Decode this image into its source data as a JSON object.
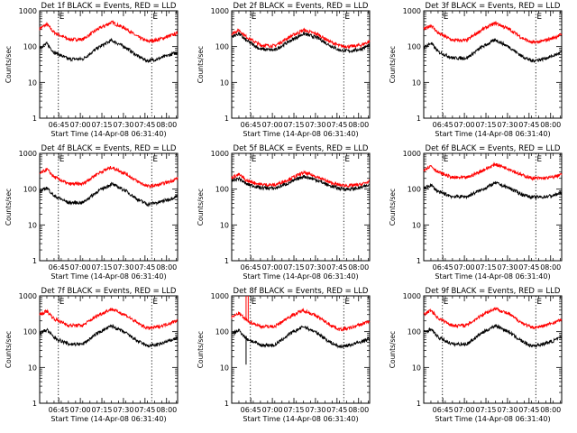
{
  "chart_data": [
    {
      "type": "line",
      "panel": "1f",
      "title": "Det 1f BLACK = Events, RED = LLD",
      "xlabel": "Start Time (14-Apr-08 06:31:40)",
      "ylabel": "Counts/sec",
      "yscale": "log",
      "ylim": [
        1,
        1000
      ],
      "xlim_minutes": [
        0,
        96
      ],
      "x_tick_labels": [
        "06:45",
        "07:00",
        "07:15",
        "07:30",
        "07:45",
        "08:00"
      ],
      "x_ticks_minutes": [
        13.3,
        28.3,
        43.3,
        58.3,
        73.3,
        88.3
      ],
      "y_tick_labels": [
        "1",
        "10",
        "100",
        "1000"
      ],
      "y_ticks": [
        1,
        10,
        100,
        1000
      ],
      "markers": [
        {
          "minutes": 13,
          "label": "E"
        },
        {
          "minutes": 78,
          "label": "E"
        }
      ],
      "series": [
        {
          "name": "Events",
          "color": "#000000",
          "x": [
            0,
            5,
            10,
            20,
            30,
            40,
            50,
            60,
            68,
            75,
            82,
            90,
            96
          ],
          "y": [
            95,
            120,
            70,
            45,
            45,
            90,
            150,
            95,
            55,
            40,
            45,
            58,
            70
          ]
        },
        {
          "name": "LLD",
          "color": "#ff0000",
          "x": [
            0,
            5,
            10,
            20,
            30,
            40,
            50,
            60,
            68,
            75,
            82,
            90,
            96
          ],
          "y": [
            320,
            420,
            250,
            160,
            160,
            300,
            480,
            320,
            190,
            140,
            155,
            195,
            240
          ]
        }
      ]
    },
    {
      "type": "line",
      "panel": "2f",
      "title": "Det 2f BLACK = Events, RED = LLD",
      "xlabel": "Start Time (14-Apr-08 06:31:40)",
      "ylabel": "Counts/sec",
      "yscale": "log",
      "ylim": [
        1,
        1000
      ],
      "xlim_minutes": [
        0,
        96
      ],
      "x_tick_labels": [
        "06:45",
        "07:00",
        "07:15",
        "07:30",
        "07:45",
        "08:00"
      ],
      "x_ticks_minutes": [
        13.3,
        28.3,
        43.3,
        58.3,
        73.3,
        88.3
      ],
      "y_tick_labels": [
        "1",
        "10",
        "100",
        "1000"
      ],
      "y_ticks": [
        1,
        10,
        100,
        1000
      ],
      "markers": [
        {
          "minutes": 13,
          "label": "E"
        },
        {
          "minutes": 78,
          "label": "E"
        }
      ],
      "series": [
        {
          "name": "Events",
          "color": "#000000",
          "x": [
            0,
            5,
            10,
            20,
            30,
            40,
            50,
            60,
            68,
            75,
            82,
            90,
            96
          ],
          "y": [
            190,
            230,
            150,
            85,
            80,
            140,
            230,
            175,
            110,
            80,
            75,
            85,
            110
          ]
        },
        {
          "name": "LLD",
          "color": "#ff0000",
          "x": [
            0,
            5,
            10,
            20,
            30,
            40,
            50,
            60,
            68,
            75,
            82,
            90,
            96
          ],
          "y": [
            230,
            290,
            190,
            110,
            105,
            185,
            290,
            220,
            140,
            105,
            100,
            110,
            140
          ]
        }
      ]
    },
    {
      "type": "line",
      "panel": "3f",
      "title": "Det 3f BLACK = Events, RED = LLD",
      "xlabel": "Start Time (14-Apr-08 06:31:40)",
      "ylabel": "Counts/sec",
      "yscale": "log",
      "ylim": [
        1,
        1000
      ],
      "xlim_minutes": [
        0,
        96
      ],
      "x_tick_labels": [
        "06:45",
        "07:00",
        "07:15",
        "07:30",
        "07:45",
        "08:00"
      ],
      "x_ticks_minutes": [
        13.3,
        28.3,
        43.3,
        58.3,
        73.3,
        88.3
      ],
      "y_tick_labels": [
        "1",
        "10",
        "100",
        "1000"
      ],
      "y_ticks": [
        1,
        10,
        100,
        1000
      ],
      "markers": [
        {
          "minutes": 13,
          "label": "E"
        },
        {
          "minutes": 78,
          "label": "E"
        }
      ],
      "series": [
        {
          "name": "Events",
          "color": "#000000",
          "x": [
            0,
            5,
            10,
            20,
            30,
            40,
            50,
            60,
            68,
            75,
            82,
            90,
            96
          ],
          "y": [
            95,
            125,
            72,
            48,
            48,
            95,
            155,
            95,
            55,
            40,
            44,
            55,
            70
          ]
        },
        {
          "name": "LLD",
          "color": "#ff0000",
          "x": [
            0,
            5,
            10,
            20,
            30,
            40,
            50,
            60,
            68,
            75,
            82,
            90,
            96
          ],
          "y": [
            300,
            400,
            240,
            150,
            150,
            290,
            460,
            300,
            180,
            130,
            140,
            175,
            220
          ]
        }
      ]
    },
    {
      "type": "line",
      "panel": "4f",
      "title": "Det 4f BLACK = Events, RED = LLD",
      "xlabel": "Start Time (14-Apr-08 06:31:40)",
      "ylabel": "Counts/sec",
      "yscale": "log",
      "ylim": [
        1,
        1000
      ],
      "xlim_minutes": [
        0,
        96
      ],
      "x_tick_labels": [
        "06:45",
        "07:00",
        "07:15",
        "07:30",
        "07:45",
        "08:00"
      ],
      "x_ticks_minutes": [
        13.3,
        28.3,
        43.3,
        58.3,
        73.3,
        88.3
      ],
      "y_tick_labels": [
        "1",
        "10",
        "100",
        "1000"
      ],
      "y_ticks": [
        1,
        10,
        100,
        1000
      ],
      "markers": [
        {
          "minutes": 13,
          "label": "E"
        },
        {
          "minutes": 78,
          "label": "E"
        }
      ],
      "series": [
        {
          "name": "Events",
          "color": "#000000",
          "x": [
            0,
            5,
            10,
            20,
            30,
            40,
            50,
            60,
            68,
            75,
            82,
            90,
            96
          ],
          "y": [
            85,
            110,
            65,
            42,
            42,
            85,
            140,
            90,
            52,
            38,
            42,
            52,
            65
          ]
        },
        {
          "name": "LLD",
          "color": "#ff0000",
          "x": [
            0,
            5,
            10,
            20,
            30,
            40,
            50,
            60,
            68,
            75,
            82,
            90,
            96
          ],
          "y": [
            270,
            360,
            220,
            140,
            140,
            270,
            410,
            270,
            165,
            120,
            130,
            160,
            200
          ]
        }
      ]
    },
    {
      "type": "line",
      "panel": "5f",
      "title": "Det 5f BLACK = Events, RED = LLD",
      "xlabel": "Start Time (14-Apr-08 06:31:40)",
      "ylabel": "Counts/sec",
      "yscale": "log",
      "ylim": [
        1,
        1000
      ],
      "xlim_minutes": [
        0,
        96
      ],
      "x_tick_labels": [
        "06:45",
        "07:00",
        "07:15",
        "07:30",
        "07:45",
        "08:00"
      ],
      "x_ticks_minutes": [
        13.3,
        28.3,
        43.3,
        58.3,
        73.3,
        88.3
      ],
      "y_tick_labels": [
        "1",
        "10",
        "100",
        "1000"
      ],
      "y_ticks": [
        1,
        10,
        100,
        1000
      ],
      "markers": [
        {
          "minutes": 13,
          "label": "E"
        },
        {
          "minutes": 78,
          "label": "E"
        }
      ],
      "series": [
        {
          "name": "Events",
          "color": "#000000",
          "x": [
            0,
            5,
            10,
            20,
            30,
            40,
            50,
            60,
            68,
            75,
            82,
            90,
            96
          ],
          "y": [
            170,
            200,
            140,
            110,
            105,
            150,
            230,
            175,
            125,
            105,
            100,
            110,
            130
          ]
        },
        {
          "name": "LLD",
          "color": "#ff0000",
          "x": [
            0,
            5,
            10,
            20,
            30,
            40,
            50,
            60,
            68,
            75,
            82,
            90,
            96
          ],
          "y": [
            210,
            260,
            175,
            135,
            130,
            190,
            290,
            220,
            155,
            130,
            125,
            135,
            165
          ]
        }
      ]
    },
    {
      "type": "line",
      "panel": "6f",
      "title": "Det 6f BLACK = Events, RED = LLD",
      "xlabel": "Start Time (14-Apr-08 06:31:40)",
      "ylabel": "Counts/sec",
      "yscale": "log",
      "ylim": [
        1,
        1000
      ],
      "xlim_minutes": [
        0,
        96
      ],
      "x_tick_labels": [
        "06:45",
        "07:00",
        "07:15",
        "07:30",
        "07:45",
        "08:00"
      ],
      "x_ticks_minutes": [
        13.3,
        28.3,
        43.3,
        58.3,
        73.3,
        88.3
      ],
      "y_tick_labels": [
        "1",
        "10",
        "100",
        "1000"
      ],
      "y_ticks": [
        1,
        10,
        100,
        1000
      ],
      "markers": [
        {
          "minutes": 13,
          "label": "E"
        },
        {
          "minutes": 78,
          "label": "E"
        }
      ],
      "series": [
        {
          "name": "Events",
          "color": "#000000",
          "x": [
            0,
            5,
            10,
            20,
            30,
            40,
            50,
            60,
            68,
            75,
            82,
            90,
            96
          ],
          "y": [
            105,
            130,
            85,
            62,
            62,
            95,
            150,
            105,
            72,
            60,
            60,
            66,
            80
          ]
        },
        {
          "name": "LLD",
          "color": "#ff0000",
          "x": [
            0,
            5,
            10,
            20,
            30,
            40,
            50,
            60,
            68,
            75,
            82,
            90,
            96
          ],
          "y": [
            350,
            450,
            300,
            210,
            210,
            320,
            500,
            360,
            250,
            205,
            200,
            215,
            260
          ]
        }
      ]
    },
    {
      "type": "line",
      "panel": "7f",
      "title": "Det 7f BLACK = Events, RED = LLD",
      "xlabel": "Start Time (14-Apr-08 06:31:40)",
      "ylabel": "Counts/sec",
      "yscale": "log",
      "ylim": [
        1,
        1000
      ],
      "xlim_minutes": [
        0,
        96
      ],
      "x_tick_labels": [
        "06:45",
        "07:00",
        "07:15",
        "07:30",
        "07:45",
        "08:00"
      ],
      "x_ticks_minutes": [
        13.3,
        28.3,
        43.3,
        58.3,
        73.3,
        88.3
      ],
      "y_tick_labels": [
        "1",
        "10",
        "100",
        "1000"
      ],
      "y_ticks": [
        1,
        10,
        100,
        1000
      ],
      "markers": [
        {
          "minutes": 13,
          "label": "E"
        },
        {
          "minutes": 78,
          "label": "E"
        }
      ],
      "series": [
        {
          "name": "Events",
          "color": "#000000",
          "x": [
            0,
            5,
            10,
            20,
            30,
            40,
            50,
            60,
            68,
            75,
            82,
            90,
            96
          ],
          "y": [
            90,
            115,
            68,
            45,
            45,
            90,
            145,
            92,
            55,
            40,
            43,
            55,
            68
          ]
        },
        {
          "name": "LLD",
          "color": "#ff0000",
          "x": [
            0,
            5,
            10,
            20,
            30,
            40,
            50,
            60,
            68,
            75,
            82,
            90,
            96
          ],
          "y": [
            290,
            380,
            230,
            150,
            150,
            280,
            430,
            290,
            175,
            125,
            135,
            170,
            210
          ]
        }
      ]
    },
    {
      "type": "line",
      "panel": "8f",
      "title": "Det 8f BLACK = Events, RED = LLD",
      "xlabel": "Start Time (14-Apr-08 06:31:40)",
      "ylabel": "Counts/sec",
      "yscale": "log",
      "ylim": [
        1,
        1000
      ],
      "xlim_minutes": [
        0,
        96
      ],
      "x_tick_labels": [
        "06:45",
        "07:00",
        "07:15",
        "07:30",
        "07:45",
        "08:00"
      ],
      "x_ticks_minutes": [
        13.3,
        28.3,
        43.3,
        58.3,
        73.3,
        88.3
      ],
      "y_tick_labels": [
        "1",
        "10",
        "100",
        "1000"
      ],
      "y_ticks": [
        1,
        10,
        100,
        1000
      ],
      "markers": [
        {
          "minutes": 13,
          "label": "E"
        },
        {
          "minutes": 78,
          "label": "E"
        }
      ],
      "series": [
        {
          "name": "Events",
          "color": "#000000",
          "x": [
            0,
            5,
            10,
            20,
            30,
            40,
            50,
            60,
            68,
            75,
            82,
            90,
            96
          ],
          "y": [
            85,
            110,
            65,
            42,
            42,
            85,
            140,
            90,
            52,
            38,
            42,
            52,
            65
          ]
        },
        {
          "name": "LLD",
          "color": "#ff0000",
          "x": [
            0,
            5,
            10,
            20,
            30,
            40,
            50,
            60,
            68,
            75,
            82,
            90,
            96
          ],
          "y": [
            250,
            330,
            210,
            140,
            140,
            260,
            400,
            260,
            160,
            115,
            125,
            160,
            200
          ]
        }
      ],
      "spikes": [
        {
          "series": "Events",
          "minutes": 10,
          "from": 75,
          "to": 12
        },
        {
          "series": "LLD",
          "minutes": 10,
          "from": 220,
          "to": 1000
        },
        {
          "series": "LLD",
          "minutes": 11.5,
          "from": 220,
          "to": 1000
        }
      ]
    },
    {
      "type": "line",
      "panel": "9f",
      "title": "Det 9f BLACK = Events, RED = LLD",
      "xlabel": "Start Time (14-Apr-08 06:31:40)",
      "ylabel": "Counts/sec",
      "yscale": "log",
      "ylim": [
        1,
        1000
      ],
      "xlim_minutes": [
        0,
        96
      ],
      "x_tick_labels": [
        "06:45",
        "07:00",
        "07:15",
        "07:30",
        "07:45",
        "08:00"
      ],
      "x_ticks_minutes": [
        13.3,
        28.3,
        43.3,
        58.3,
        73.3,
        88.3
      ],
      "y_tick_labels": [
        "1",
        "10",
        "100",
        "1000"
      ],
      "y_ticks": [
        1,
        10,
        100,
        1000
      ],
      "markers": [
        {
          "minutes": 13,
          "label": "E"
        },
        {
          "minutes": 78,
          "label": "E"
        }
      ],
      "series": [
        {
          "name": "Events",
          "color": "#000000",
          "x": [
            0,
            5,
            10,
            20,
            30,
            40,
            50,
            60,
            68,
            75,
            82,
            90,
            96
          ],
          "y": [
            95,
            120,
            70,
            45,
            45,
            90,
            150,
            95,
            55,
            40,
            44,
            55,
            70
          ]
        },
        {
          "name": "LLD",
          "color": "#ff0000",
          "x": [
            0,
            5,
            10,
            20,
            30,
            40,
            50,
            60,
            68,
            75,
            82,
            90,
            96
          ],
          "y": [
            300,
            400,
            240,
            150,
            150,
            290,
            450,
            300,
            180,
            130,
            140,
            175,
            220
          ]
        }
      ]
    }
  ]
}
